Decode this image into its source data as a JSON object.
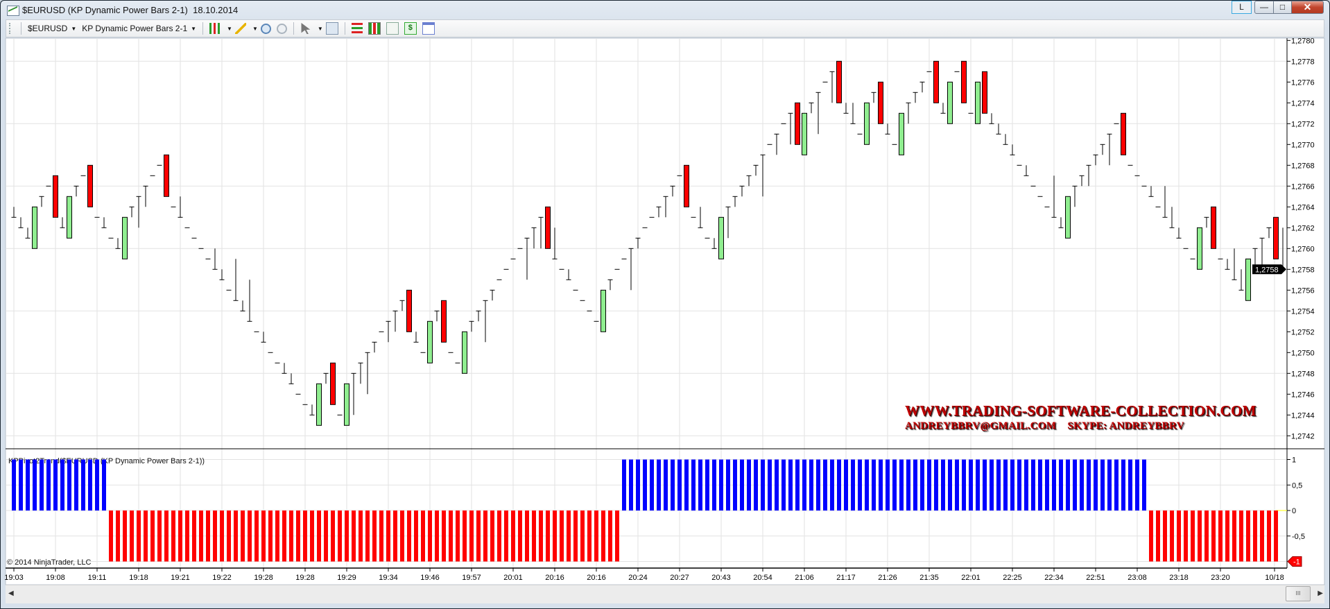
{
  "window": {
    "title": "$EURUSD (KP Dynamic Power Bars 2-1)  18.10.2014",
    "buttons": {
      "layout": "L",
      "minimize": "—",
      "maximize": "□",
      "close": "✕"
    }
  },
  "toolbar": {
    "instrument": "$EURUSD",
    "bar_type": "KP Dynamic Power Bars 2-1",
    "dollar_label": "$",
    "icons": [
      "chart-style-icon",
      "drawing-tool-icon",
      "zoom-in-icon",
      "zoom-out-icon",
      "pointer-icon",
      "magnifier-icon",
      "strategies-icon",
      "bars-icon",
      "data-box-icon",
      "orders-icon",
      "properties-icon"
    ]
  },
  "watermark": {
    "line1": "WWW.TRADING-SOFTWARE-COLLECTION.COM",
    "line2": "ANDREYBBRV@GMAIL.COM    SKYPE: ANDREYBBRV"
  },
  "copyright": "© 2014 NinjaTrader, LLC",
  "scrollbar": {
    "thumb_grip": "III",
    "left_arrow": "◀",
    "right_arrow": "▶"
  },
  "colors": {
    "up_bar": "#90ee90",
    "down_bar": "#ff0000",
    "bar": "#000000",
    "trend_up": "#0000ff",
    "trend_down": "#ff0000",
    "grid": "#e2e2e2",
    "zero_line": "#ffff00"
  },
  "chart_data": [
    {
      "type": "ohlc",
      "title": "",
      "instrument": "$EURUSD",
      "y_axis": {
        "min": 1.2742,
        "max": 1.278,
        "step": 0.0002,
        "decimal_separator": ",",
        "tick_labels": [
          "1,2742",
          "1,2744",
          "1,2746",
          "1,2748",
          "1,2750",
          "1,2752",
          "1,2754",
          "1,2756",
          "1,2758",
          "1,2760",
          "1,2762",
          "1,2764",
          "1,2766",
          "1,2768",
          "1,2770",
          "1,2772",
          "1,2774",
          "1,2776",
          "1,2778",
          "1,2780"
        ]
      },
      "last_price_label": "1,2758",
      "x_tick_labels": [
        "19:03",
        "19:08",
        "19:11",
        "19:18",
        "19:21",
        "19:22",
        "19:28",
        "19:28",
        "19:29",
        "19:34",
        "19:46",
        "19:57",
        "20:01",
        "20:16",
        "20:16",
        "20:24",
        "20:27",
        "20:43",
        "20:54",
        "21:06",
        "21:17",
        "21:26",
        "21:35",
        "22:01",
        "22:25",
        "22:34",
        "22:51",
        "23:08",
        "23:18",
        "23:20",
        "10/18"
      ],
      "grid": true,
      "bar_format": [
        "high",
        "low",
        "close",
        "kind"
      ],
      "bars": [
        [
          1.2764,
          1.2763,
          1.2763,
          "bar"
        ],
        [
          1.2763,
          1.2762,
          1.2762,
          "bar"
        ],
        [
          1.2762,
          1.2761,
          1.2761,
          "bar"
        ],
        [
          1.2764,
          1.276,
          1.2764,
          "up"
        ],
        [
          1.2765,
          1.2764,
          1.2765,
          "bar"
        ],
        [
          1.2766,
          1.2766,
          1.2766,
          "bar"
        ],
        [
          1.2767,
          1.2763,
          1.2763,
          "down"
        ],
        [
          1.2763,
          1.2762,
          1.2762,
          "bar"
        ],
        [
          1.2765,
          1.2761,
          1.2765,
          "up"
        ],
        [
          1.2766,
          1.2765,
          1.2766,
          "bar"
        ],
        [
          1.2767,
          1.2767,
          1.2767,
          "bar"
        ],
        [
          1.2768,
          1.2764,
          1.2764,
          "down"
        ],
        [
          1.2763,
          1.2763,
          1.2763,
          "bar"
        ],
        [
          1.2763,
          1.2762,
          1.2762,
          "bar"
        ],
        [
          1.2761,
          1.2761,
          1.2761,
          "bar"
        ],
        [
          1.2761,
          1.276,
          1.276,
          "bar"
        ],
        [
          1.2763,
          1.2759,
          1.2763,
          "up"
        ],
        [
          1.2764,
          1.2763,
          1.2764,
          "bar"
        ],
        [
          1.2765,
          1.2762,
          1.2765,
          "bar"
        ],
        [
          1.2766,
          1.2764,
          1.2766,
          "bar"
        ],
        [
          1.2767,
          1.2767,
          1.2767,
          "bar"
        ],
        [
          1.2768,
          1.2768,
          1.2768,
          "bar"
        ],
        [
          1.2769,
          1.2765,
          1.2765,
          "down"
        ],
        [
          1.2764,
          1.2764,
          1.2764,
          "bar"
        ],
        [
          1.2765,
          1.2763,
          1.2763,
          "bar"
        ],
        [
          1.2762,
          1.2762,
          1.2762,
          "bar"
        ],
        [
          1.2761,
          1.2761,
          1.2761,
          "bar"
        ],
        [
          1.276,
          1.276,
          1.276,
          "bar"
        ],
        [
          1.2759,
          1.2759,
          1.2759,
          "bar"
        ],
        [
          1.276,
          1.2758,
          1.2758,
          "bar"
        ],
        [
          1.2758,
          1.2757,
          1.2757,
          "bar"
        ],
        [
          1.2756,
          1.2756,
          1.2756,
          "bar"
        ],
        [
          1.2759,
          1.2755,
          1.2755,
          "bar"
        ],
        [
          1.2755,
          1.2754,
          1.2754,
          "bar"
        ],
        [
          1.2757,
          1.2753,
          1.2753,
          "bar"
        ],
        [
          1.2752,
          1.2752,
          1.2752,
          "bar"
        ],
        [
          1.2752,
          1.2751,
          1.2751,
          "bar"
        ],
        [
          1.275,
          1.275,
          1.275,
          "bar"
        ],
        [
          1.2749,
          1.2749,
          1.2749,
          "bar"
        ],
        [
          1.2749,
          1.2748,
          1.2748,
          "bar"
        ],
        [
          1.2748,
          1.2747,
          1.2747,
          "bar"
        ],
        [
          1.2746,
          1.2746,
          1.2746,
          "bar"
        ],
        [
          1.2745,
          1.2745,
          1.2745,
          "bar"
        ],
        [
          1.2745,
          1.2744,
          1.2744,
          "bar"
        ],
        [
          1.2747,
          1.2743,
          1.2747,
          "up"
        ],
        [
          1.2748,
          1.2747,
          1.2748,
          "bar"
        ],
        [
          1.2749,
          1.2745,
          1.2745,
          "down"
        ],
        [
          1.2744,
          1.2744,
          1.2744,
          "bar"
        ],
        [
          1.2747,
          1.2743,
          1.2747,
          "up"
        ],
        [
          1.2748,
          1.2744,
          1.2748,
          "bar"
        ],
        [
          1.2749,
          1.2747,
          1.2749,
          "bar"
        ],
        [
          1.275,
          1.2746,
          1.275,
          "bar"
        ],
        [
          1.2751,
          1.275,
          1.2751,
          "bar"
        ],
        [
          1.2752,
          1.2752,
          1.2752,
          "bar"
        ],
        [
          1.2753,
          1.2751,
          1.2753,
          "bar"
        ],
        [
          1.2754,
          1.2752,
          1.2754,
          "bar"
        ],
        [
          1.2755,
          1.2754,
          1.2755,
          "bar"
        ],
        [
          1.2756,
          1.2752,
          1.2752,
          "down"
        ],
        [
          1.2752,
          1.2751,
          1.2751,
          "bar"
        ],
        [
          1.275,
          1.275,
          1.275,
          "bar"
        ],
        [
          1.2753,
          1.2749,
          1.2753,
          "up"
        ],
        [
          1.2754,
          1.2753,
          1.2754,
          "bar"
        ],
        [
          1.2755,
          1.2751,
          1.2751,
          "down"
        ],
        [
          1.275,
          1.275,
          1.275,
          "bar"
        ],
        [
          1.2749,
          1.2749,
          1.2749,
          "bar"
        ],
        [
          1.2752,
          1.2748,
          1.2752,
          "up"
        ],
        [
          1.2753,
          1.2752,
          1.2753,
          "bar"
        ],
        [
          1.2754,
          1.2753,
          1.2754,
          "bar"
        ],
        [
          1.2755,
          1.2751,
          1.2755,
          "bar"
        ],
        [
          1.2756,
          1.2755,
          1.2756,
          "bar"
        ],
        [
          1.2757,
          1.2757,
          1.2757,
          "bar"
        ],
        [
          1.2758,
          1.2758,
          1.2758,
          "bar"
        ],
        [
          1.2759,
          1.2759,
          1.2759,
          "bar"
        ],
        [
          1.276,
          1.276,
          1.276,
          "bar"
        ],
        [
          1.2761,
          1.2757,
          1.2761,
          "bar"
        ],
        [
          1.2762,
          1.276,
          1.2762,
          "bar"
        ],
        [
          1.2763,
          1.276,
          1.2763,
          "bar"
        ],
        [
          1.2764,
          1.276,
          1.276,
          "down"
        ],
        [
          1.2762,
          1.2759,
          1.2759,
          "bar"
        ],
        [
          1.2758,
          1.2758,
          1.2758,
          "bar"
        ],
        [
          1.2758,
          1.2757,
          1.2757,
          "bar"
        ],
        [
          1.2756,
          1.2756,
          1.2756,
          "bar"
        ],
        [
          1.2755,
          1.2755,
          1.2755,
          "bar"
        ],
        [
          1.2754,
          1.2754,
          1.2754,
          "bar"
        ],
        [
          1.2753,
          1.2753,
          1.2753,
          "bar"
        ],
        [
          1.2756,
          1.2752,
          1.2756,
          "up"
        ],
        [
          1.2757,
          1.2756,
          1.2757,
          "bar"
        ],
        [
          1.2758,
          1.2758,
          1.2758,
          "bar"
        ],
        [
          1.2759,
          1.2759,
          1.2759,
          "bar"
        ],
        [
          1.276,
          1.2756,
          1.276,
          "bar"
        ],
        [
          1.2761,
          1.276,
          1.2761,
          "bar"
        ],
        [
          1.2762,
          1.2762,
          1.2762,
          "bar"
        ],
        [
          1.2763,
          1.2763,
          1.2763,
          "bar"
        ],
        [
          1.2764,
          1.2763,
          1.2764,
          "bar"
        ],
        [
          1.2765,
          1.2763,
          1.2765,
          "bar"
        ],
        [
          1.2766,
          1.2765,
          1.2766,
          "bar"
        ],
        [
          1.2767,
          1.2767,
          1.2767,
          "bar"
        ],
        [
          1.2768,
          1.2764,
          1.2764,
          "down"
        ],
        [
          1.2763,
          1.2763,
          1.2763,
          "bar"
        ],
        [
          1.2764,
          1.2762,
          1.2762,
          "bar"
        ],
        [
          1.2761,
          1.2761,
          1.2761,
          "bar"
        ],
        [
          1.2761,
          1.276,
          1.276,
          "bar"
        ],
        [
          1.2763,
          1.2759,
          1.2763,
          "up"
        ],
        [
          1.2764,
          1.2761,
          1.2764,
          "bar"
        ],
        [
          1.2765,
          1.2764,
          1.2765,
          "bar"
        ],
        [
          1.2766,
          1.2765,
          1.2766,
          "bar"
        ],
        [
          1.2767,
          1.2766,
          1.2767,
          "bar"
        ],
        [
          1.2768,
          1.2767,
          1.2768,
          "bar"
        ],
        [
          1.2769,
          1.2765,
          1.2769,
          "bar"
        ],
        [
          1.277,
          1.277,
          1.277,
          "bar"
        ],
        [
          1.2771,
          1.2769,
          1.2771,
          "bar"
        ],
        [
          1.2772,
          1.2772,
          1.2772,
          "bar"
        ],
        [
          1.2773,
          1.277,
          1.2773,
          "bar"
        ],
        [
          1.2774,
          1.277,
          1.277,
          "down"
        ],
        [
          1.2773,
          1.2769,
          1.2773,
          "up"
        ],
        [
          1.2774,
          1.2773,
          1.2774,
          "bar"
        ],
        [
          1.2775,
          1.2771,
          1.2775,
          "bar"
        ],
        [
          1.2776,
          1.2776,
          1.2776,
          "bar"
        ],
        [
          1.2777,
          1.2774,
          1.2777,
          "bar"
        ],
        [
          1.2778,
          1.2774,
          1.2774,
          "down"
        ],
        [
          1.2774,
          1.2773,
          1.2773,
          "bar"
        ],
        [
          1.2774,
          1.2772,
          1.2772,
          "bar"
        ],
        [
          1.2771,
          1.2771,
          1.2771,
          "bar"
        ],
        [
          1.2774,
          1.277,
          1.2774,
          "up"
        ],
        [
          1.2775,
          1.2774,
          1.2775,
          "bar"
        ],
        [
          1.2776,
          1.2772,
          1.2772,
          "down"
        ],
        [
          1.2772,
          1.2771,
          1.2771,
          "bar"
        ],
        [
          1.277,
          1.277,
          1.277,
          "bar"
        ],
        [
          1.2773,
          1.2769,
          1.2773,
          "up"
        ],
        [
          1.2774,
          1.2772,
          1.2774,
          "bar"
        ],
        [
          1.2775,
          1.2774,
          1.2775,
          "bar"
        ],
        [
          1.2776,
          1.2775,
          1.2776,
          "bar"
        ],
        [
          1.2777,
          1.2777,
          1.2777,
          "bar"
        ],
        [
          1.2778,
          1.2774,
          1.2774,
          "down"
        ],
        [
          1.2774,
          1.2773,
          1.2773,
          "bar"
        ],
        [
          1.2776,
          1.2772,
          1.2776,
          "up"
        ],
        [
          1.2777,
          1.2777,
          1.2777,
          "bar"
        ],
        [
          1.2778,
          1.2774,
          1.2774,
          "down"
        ],
        [
          1.2773,
          1.2773,
          1.2773,
          "bar"
        ],
        [
          1.2776,
          1.2772,
          1.2776,
          "up"
        ],
        [
          1.2777,
          1.2773,
          1.2773,
          "down"
        ],
        [
          1.2773,
          1.2772,
          1.2772,
          "bar"
        ],
        [
          1.2772,
          1.2771,
          1.2771,
          "bar"
        ],
        [
          1.2771,
          1.277,
          1.277,
          "bar"
        ],
        [
          1.277,
          1.2769,
          1.2769,
          "bar"
        ],
        [
          1.2768,
          1.2768,
          1.2768,
          "bar"
        ],
        [
          1.2768,
          1.2767,
          1.2767,
          "bar"
        ],
        [
          1.2766,
          1.2766,
          1.2766,
          "bar"
        ],
        [
          1.2765,
          1.2765,
          1.2765,
          "bar"
        ],
        [
          1.2764,
          1.2764,
          1.2764,
          "bar"
        ],
        [
          1.2767,
          1.2763,
          1.2763,
          "bar"
        ],
        [
          1.2763,
          1.2762,
          1.2762,
          "bar"
        ],
        [
          1.2765,
          1.2761,
          1.2765,
          "up"
        ],
        [
          1.2766,
          1.2764,
          1.2766,
          "bar"
        ],
        [
          1.2767,
          1.2766,
          1.2767,
          "bar"
        ],
        [
          1.2768,
          1.2766,
          1.2768,
          "bar"
        ],
        [
          1.2769,
          1.2768,
          1.2769,
          "bar"
        ],
        [
          1.277,
          1.2769,
          1.277,
          "bar"
        ],
        [
          1.2771,
          1.2768,
          1.2771,
          "bar"
        ],
        [
          1.2772,
          1.2772,
          1.2772,
          "bar"
        ],
        [
          1.2773,
          1.2769,
          1.2769,
          "down"
        ],
        [
          1.2768,
          1.2768,
          1.2768,
          "bar"
        ],
        [
          1.2767,
          1.2767,
          1.2767,
          "bar"
        ],
        [
          1.2766,
          1.2766,
          1.2766,
          "bar"
        ],
        [
          1.2766,
          1.2765,
          1.2765,
          "bar"
        ],
        [
          1.2764,
          1.2764,
          1.2764,
          "bar"
        ],
        [
          1.2766,
          1.2763,
          1.2763,
          "bar"
        ],
        [
          1.2764,
          1.2762,
          1.2762,
          "bar"
        ],
        [
          1.2762,
          1.2761,
          1.2761,
          "bar"
        ],
        [
          1.276,
          1.276,
          1.276,
          "bar"
        ],
        [
          1.2759,
          1.2759,
          1.2759,
          "bar"
        ],
        [
          1.2762,
          1.2758,
          1.2762,
          "up"
        ],
        [
          1.2763,
          1.2762,
          1.2763,
          "bar"
        ],
        [
          1.2764,
          1.276,
          1.276,
          "down"
        ],
        [
          1.2759,
          1.2759,
          1.2759,
          "bar"
        ],
        [
          1.2759,
          1.2758,
          1.2758,
          "bar"
        ],
        [
          1.276,
          1.2757,
          1.2757,
          "bar"
        ],
        [
          1.2758,
          1.2756,
          1.2756,
          "bar"
        ],
        [
          1.2759,
          1.2755,
          1.2759,
          "up"
        ],
        [
          1.276,
          1.2758,
          1.276,
          "bar"
        ],
        [
          1.2761,
          1.2758,
          1.2761,
          "bar"
        ],
        [
          1.2762,
          1.2761,
          1.2762,
          "bar"
        ],
        [
          1.2763,
          1.2759,
          1.2759,
          "down"
        ],
        [
          1.2762,
          1.2758,
          1.2758,
          "bar"
        ]
      ]
    },
    {
      "type": "bar",
      "label": "KPPivot2Trend($EURUSD (KP Dynamic Power Bars 2-1))",
      "y_axis": {
        "min": -1,
        "max": 1,
        "tick_labels": [
          "1",
          "0,5",
          "0",
          "-0,5"
        ]
      },
      "last_value_label": "-1",
      "runs": [
        {
          "value": 1,
          "count": 14
        },
        {
          "value": -1,
          "count": 74
        },
        {
          "value": 1,
          "count": 76
        },
        {
          "value": -1,
          "count": 19
        }
      ]
    }
  ]
}
